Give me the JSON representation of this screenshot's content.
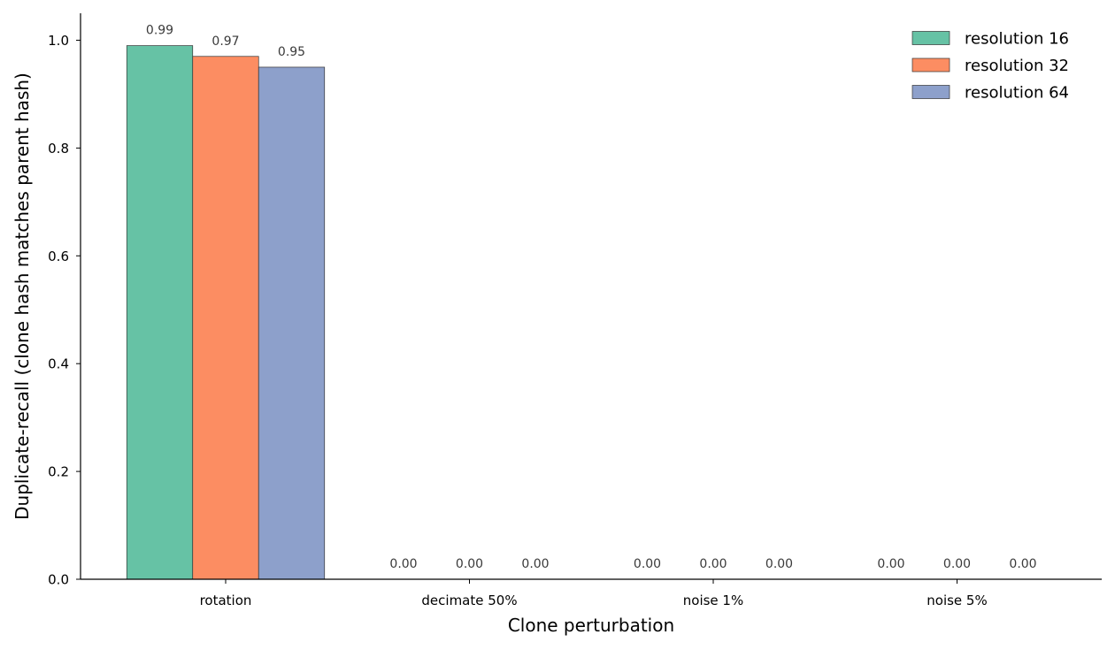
{
  "chart_data": {
    "type": "bar",
    "title": "",
    "xlabel": "Clone perturbation",
    "ylabel": "Duplicate-recall (clone hash matches parent hash)",
    "categories": [
      "rotation",
      "decimate 50%",
      "noise 1%",
      "noise 5%"
    ],
    "series": [
      {
        "name": "resolution 16",
        "color": "#66c2a5",
        "values": [
          0.99,
          0.0,
          0.0,
          0.0
        ],
        "labels": [
          "0.99",
          "0.00",
          "0.00",
          "0.00"
        ]
      },
      {
        "name": "resolution 32",
        "color": "#fc8d62",
        "values": [
          0.97,
          0.0,
          0.0,
          0.0
        ],
        "labels": [
          "0.97",
          "0.00",
          "0.00",
          "0.00"
        ]
      },
      {
        "name": "resolution 64",
        "color": "#8da0cb",
        "values": [
          0.95,
          0.0,
          0.0,
          0.0
        ],
        "labels": [
          "0.95",
          "0.00",
          "0.00",
          "0.00"
        ]
      }
    ],
    "ylim": [
      0,
      1.05
    ],
    "yticks": [
      0.0,
      0.2,
      0.4,
      0.6,
      0.8,
      1.0
    ],
    "ytick_labels": [
      "0.0",
      "0.2",
      "0.4",
      "0.6",
      "0.8",
      "1.0"
    ],
    "grid": false,
    "legend_position": "top-right"
  }
}
